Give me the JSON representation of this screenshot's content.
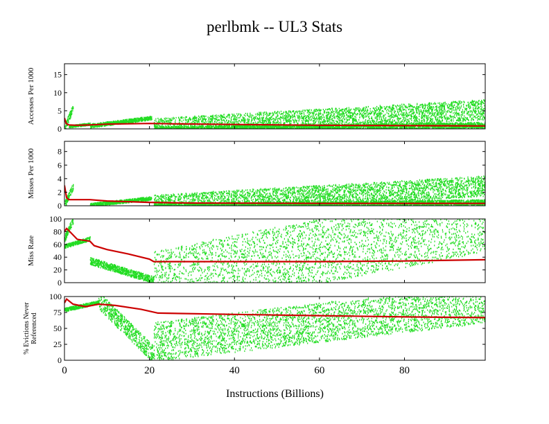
{
  "chart_data": {
    "title": "perlbmk -- UL3  Stats",
    "xlabel": "Instructions (Billions)",
    "xlim": [
      0,
      99
    ],
    "xticks": [
      0,
      20,
      40,
      60,
      80
    ],
    "colors": {
      "scatter": "#22dd22",
      "trend": "#cc0000"
    },
    "panels": [
      {
        "type": "scatter",
        "ylabel": [
          "Accesses Per 1000"
        ],
        "ylim": [
          0,
          18
        ],
        "yticks": [
          0,
          5,
          10,
          15
        ],
        "trend": [
          [
            0,
            3
          ],
          [
            0.4,
            1.5
          ],
          [
            1,
            1.1
          ],
          [
            3,
            1.0
          ],
          [
            6,
            1.1
          ],
          [
            10,
            1.3
          ],
          [
            15,
            1.4
          ],
          [
            20,
            1.5
          ],
          [
            25,
            1.4
          ],
          [
            40,
            1.2
          ],
          [
            60,
            1.0
          ],
          [
            80,
            0.9
          ],
          [
            99,
            0.8
          ]
        ],
        "scatter_bands": [
          {
            "x": [
              0,
              2
            ],
            "y": [
              0.5,
              6
            ]
          },
          {
            "x": [
              1,
              6
            ],
            "y": [
              0.8,
              1.5
            ]
          },
          {
            "x": [
              6,
              20.5
            ],
            "y": [
              1.0,
              3.2
            ]
          },
          {
            "x": [
              21,
              99
            ],
            "y": [
              0,
              1.2
            ]
          },
          {
            "x": [
              21,
              99
            ],
            "y": [
              0.3,
              5.5
            ]
          }
        ]
      },
      {
        "type": "scatter",
        "ylabel": [
          "Misses Per 1000"
        ],
        "ylim": [
          0,
          9.5
        ],
        "yticks": [
          0,
          2,
          4,
          6,
          8
        ],
        "trend": [
          [
            0,
            3
          ],
          [
            0.5,
            1.2
          ],
          [
            1,
            0.9
          ],
          [
            6,
            0.9
          ],
          [
            10,
            0.7
          ],
          [
            15,
            0.6
          ],
          [
            20,
            0.5
          ],
          [
            30,
            0.4
          ],
          [
            60,
            0.35
          ],
          [
            99,
            0.35
          ]
        ],
        "scatter_bands": [
          {
            "x": [
              0,
              2
            ],
            "y": [
              0.2,
              3
            ]
          },
          {
            "x": [
              6,
              20.5
            ],
            "y": [
              0.2,
              1.2
            ]
          },
          {
            "x": [
              21,
              99
            ],
            "y": [
              0,
              0.6
            ]
          },
          {
            "x": [
              21,
              99
            ],
            "y": [
              0.2,
              3
            ]
          }
        ]
      },
      {
        "type": "scatter",
        "ylabel": [
          "Miss Rate"
        ],
        "ylim": [
          0,
          100
        ],
        "yticks": [
          0,
          20,
          40,
          60,
          80,
          100
        ],
        "trend": [
          [
            0,
            80
          ],
          [
            0.5,
            85
          ],
          [
            1,
            82
          ],
          [
            3,
            68
          ],
          [
            6,
            65
          ],
          [
            7,
            58
          ],
          [
            10,
            52
          ],
          [
            15,
            45
          ],
          [
            20,
            37
          ],
          [
            21,
            33
          ],
          [
            40,
            33
          ],
          [
            60,
            33
          ],
          [
            80,
            34
          ],
          [
            99,
            36
          ]
        ],
        "scatter_bands": [
          {
            "x": [
              0,
              2
            ],
            "y": [
              70,
              100
            ]
          },
          {
            "x": [
              0,
              6
            ],
            "y": [
              58,
              70
            ]
          },
          {
            "x": [
              6,
              21
            ],
            "y": [
              35,
              5
            ]
          },
          {
            "x": [
              21,
              99
            ],
            "y": [
              0,
              100
            ]
          }
        ]
      },
      {
        "type": "scatter",
        "ylabel": [
          "% Evictions Never",
          "Referenced"
        ],
        "ylim": [
          0,
          100
        ],
        "yticks": [
          0,
          25,
          50,
          75,
          100
        ],
        "trend": [
          [
            0,
            90
          ],
          [
            0.5,
            96
          ],
          [
            2,
            88
          ],
          [
            5,
            84
          ],
          [
            8,
            88
          ],
          [
            12,
            86
          ],
          [
            18,
            80
          ],
          [
            22,
            74
          ],
          [
            40,
            72
          ],
          [
            60,
            70
          ],
          [
            80,
            68
          ],
          [
            99,
            67
          ]
        ],
        "scatter_bands": [
          {
            "x": [
              0,
              8
            ],
            "y": [
              80,
              92
            ]
          },
          {
            "x": [
              8,
              21
            ],
            "y": [
              95,
              10
            ]
          },
          {
            "x": [
              21,
              99
            ],
            "y": [
              30,
              90
            ]
          }
        ]
      }
    ]
  }
}
